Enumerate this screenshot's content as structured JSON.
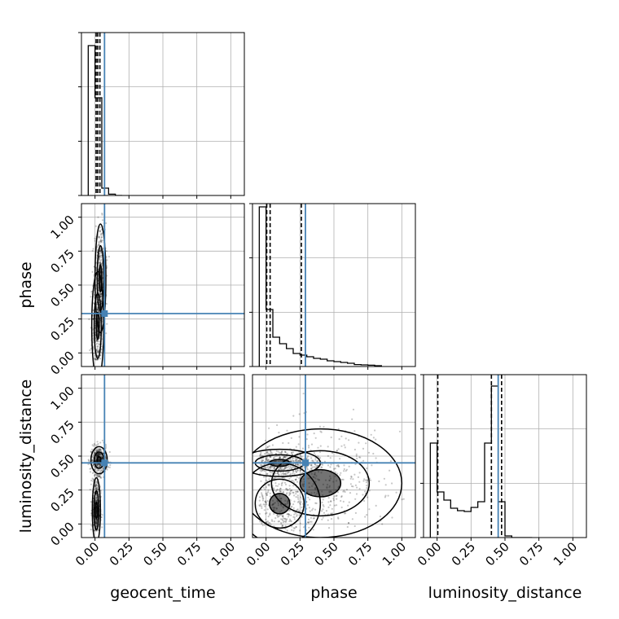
{
  "chart_data": {
    "type": "corner",
    "parameters": [
      "geocent_time",
      "phase",
      "luminosity_distance"
    ],
    "axis_labels": {
      "x": [
        "geocent_time",
        "phase",
        "luminosity_distance"
      ],
      "y": [
        "phase",
        "luminosity_distance"
      ]
    },
    "range": [
      -0.1,
      1.1
    ],
    "ticks": [
      0.0,
      0.25,
      0.5,
      0.75,
      1.0
    ],
    "tick_labels": [
      "0.00",
      "0.25",
      "0.50",
      "0.75",
      "1.00"
    ],
    "truths": [
      0.07,
      0.29,
      0.45
    ],
    "truth_color": "#4682b4",
    "grid": true,
    "histograms": [
      {
        "parameter": "geocent_time",
        "bin_edges": [
          -0.05,
          0.0,
          0.05,
          0.1,
          0.15,
          0.2
        ],
        "counts": [
          0.92,
          0.6,
          0.045,
          0.008,
          0.0
        ],
        "quantiles": [
          0.008,
          0.02,
          0.036
        ],
        "ymax": 1.0
      },
      {
        "parameter": "phase",
        "bin_edges": [
          -0.05,
          0.0,
          0.05,
          0.1,
          0.15,
          0.2,
          0.25,
          0.3,
          0.35,
          0.4,
          0.45,
          0.5,
          0.55,
          0.6,
          0.65,
          0.7,
          0.75,
          0.8,
          0.85
        ],
        "counts": [
          0.98,
          0.35,
          0.18,
          0.14,
          0.11,
          0.08,
          0.07,
          0.06,
          0.05,
          0.045,
          0.035,
          0.03,
          0.025,
          0.02,
          0.012,
          0.01,
          0.008,
          0.005
        ],
        "quantiles": [
          0.005,
          0.03,
          0.26
        ],
        "ymax": 1.0
      },
      {
        "parameter": "luminosity_distance",
        "bin_edges": [
          -0.05,
          0.0,
          0.05,
          0.1,
          0.15,
          0.2,
          0.25,
          0.3,
          0.35,
          0.4,
          0.45,
          0.5,
          0.55,
          0.6,
          0.65,
          0.7
        ],
        "counts": [
          0.58,
          0.28,
          0.23,
          0.18,
          0.165,
          0.16,
          0.185,
          0.22,
          0.58,
          0.93,
          0.22,
          0.01,
          0.0,
          0.0,
          0.0
        ],
        "quantiles": [
          0.005,
          0.4,
          0.475
        ],
        "ymax": 1.0
      }
    ],
    "scatter_density": [
      {
        "x": "geocent_time",
        "y": "phase",
        "clusters": [
          {
            "cx": 0.02,
            "cy": 0.2,
            "sx": 0.022,
            "sy": 0.2
          },
          {
            "cx": 0.04,
            "cy": 0.55,
            "sx": 0.02,
            "sy": 0.2
          }
        ]
      },
      {
        "x": "geocent_time",
        "y": "luminosity_distance",
        "clusters": [
          {
            "cx": 0.03,
            "cy": 0.47,
            "sx": 0.03,
            "sy": 0.05
          },
          {
            "cx": 0.01,
            "cy": 0.1,
            "sx": 0.015,
            "sy": 0.12
          }
        ]
      },
      {
        "x": "phase",
        "y": "luminosity_distance",
        "clusters": [
          {
            "cx": 0.1,
            "cy": 0.45,
            "sx": 0.15,
            "sy": 0.05
          },
          {
            "cx": 0.1,
            "cy": 0.15,
            "sx": 0.15,
            "sy": 0.15
          },
          {
            "cx": 0.4,
            "cy": 0.3,
            "sx": 0.3,
            "sy": 0.2
          }
        ]
      }
    ]
  }
}
